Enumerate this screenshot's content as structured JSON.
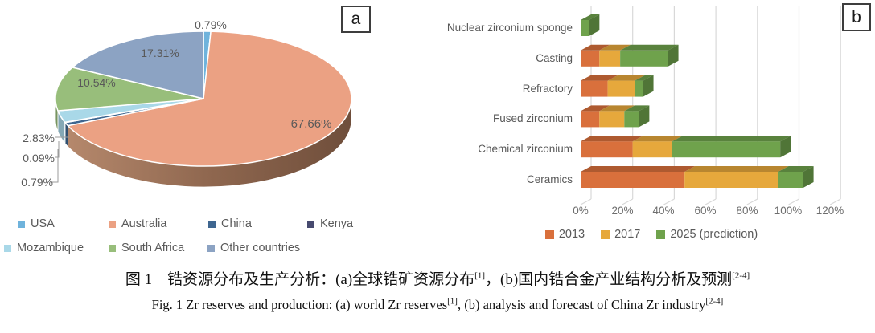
{
  "figure": {
    "panel_a_label": "a",
    "panel_b_label": "b",
    "caption_zh": {
      "part1": "图 1　锆资源分布及生产分析：(a)全球锆矿资源分布",
      "ref1": "[1]",
      "part2": "，(b)国内锆合金产业结构分析及预测",
      "ref2": "[2-4]"
    },
    "caption_en": {
      "part1": "Fig. 1  Zr reserves and production: (a) world Zr reserves",
      "ref1": "[1]",
      "part2": ", (b) analysis and forecast of China Zr industry",
      "ref2": "[2-4]"
    }
  },
  "chart_data": [
    {
      "type": "pie",
      "panel": "a",
      "style": "3d",
      "title": "world Zr reserves",
      "labels": [
        "USA",
        "Australia",
        "China",
        "Kenya",
        "Mozambique",
        "South Africa",
        "Other countries"
      ],
      "values": [
        0.79,
        67.66,
        0.79,
        0.09,
        2.83,
        10.54,
        17.31
      ],
      "display_values": [
        "0.79%",
        "67.66%",
        "0.79%",
        "0.09%",
        "2.83%",
        "10.54%",
        "17.31%"
      ],
      "colors": [
        "#6FB3DC",
        "#EBA183",
        "#3E6690",
        "#474A6F",
        "#A9D8E8",
        "#98BE7B",
        "#8CA3C3"
      ],
      "side_gradient": [
        "#6F4E3B",
        "#8F674F",
        "#B5886C"
      ],
      "legend_position": "bottom",
      "label_color": "#595959"
    },
    {
      "type": "bar",
      "panel": "b",
      "orientation": "horizontal-stacked",
      "title": "analysis and forecast of China Zr industry",
      "categories": [
        "Nuclear zirconium sponge",
        "Casting",
        "Refractory",
        "Fused zirconium",
        "Chemical zirconium",
        "Ceramics"
      ],
      "series": [
        {
          "name": "2013",
          "color": "#D9703C",
          "values": [
            0,
            9,
            13,
            9,
            25,
            50
          ]
        },
        {
          "name": "2017",
          "color": "#E6A83C",
          "values": [
            0,
            10,
            13,
            12,
            19,
            45
          ]
        },
        {
          "name": "2025  (prediction)",
          "color": "#6FA24C",
          "values": [
            4,
            23,
            4,
            7,
            52,
            12
          ]
        }
      ],
      "xlabels": [
        "0%",
        "20%",
        "40%",
        "60%",
        "80%",
        "100%",
        "120%"
      ],
      "xlim": [
        0,
        120
      ],
      "grid": true,
      "grid_color": "#D8D8D8",
      "legend_position": "bottom"
    }
  ]
}
